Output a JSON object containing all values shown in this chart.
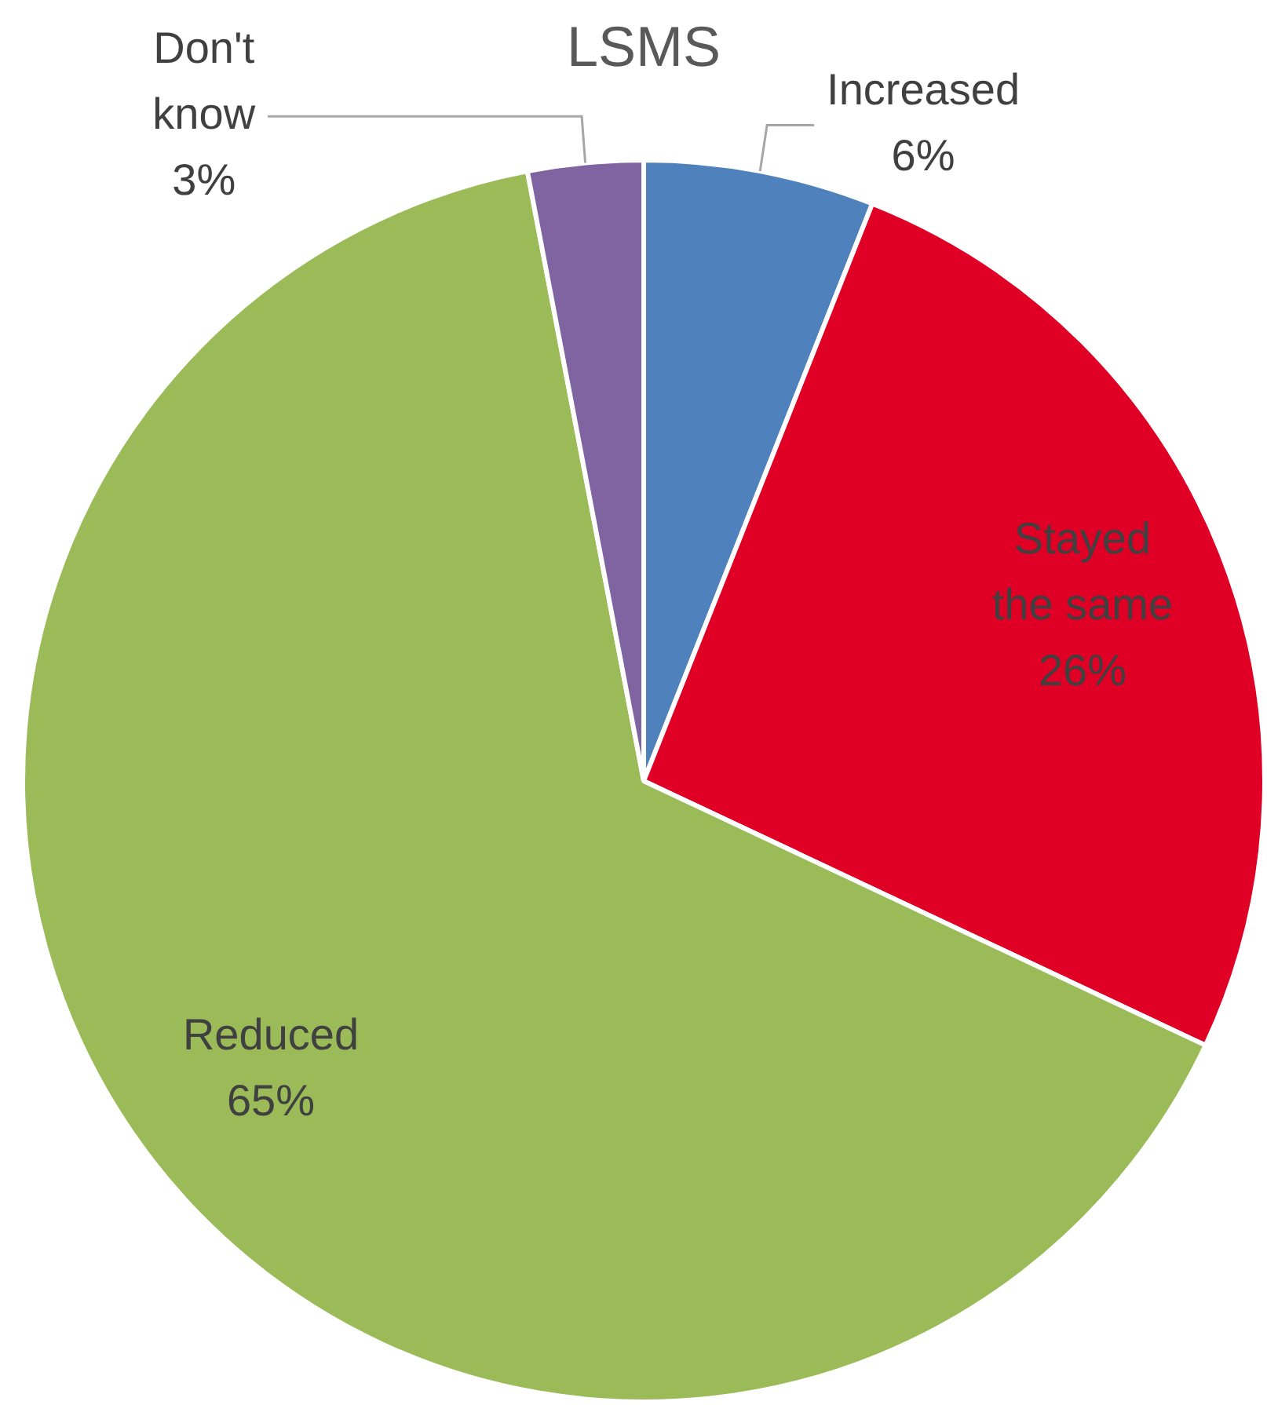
{
  "chart_data": {
    "type": "pie",
    "title": "LSMS",
    "categories": [
      "Increased",
      "Stayed the same",
      "Reduced",
      "Don't know"
    ],
    "values": [
      6,
      26,
      65,
      3
    ],
    "colors": [
      "#4f81bd",
      "#e00025",
      "#9bbb59",
      "#8064a2"
    ],
    "value_labels": [
      "6%",
      "26%",
      "65%",
      "3%"
    ]
  }
}
